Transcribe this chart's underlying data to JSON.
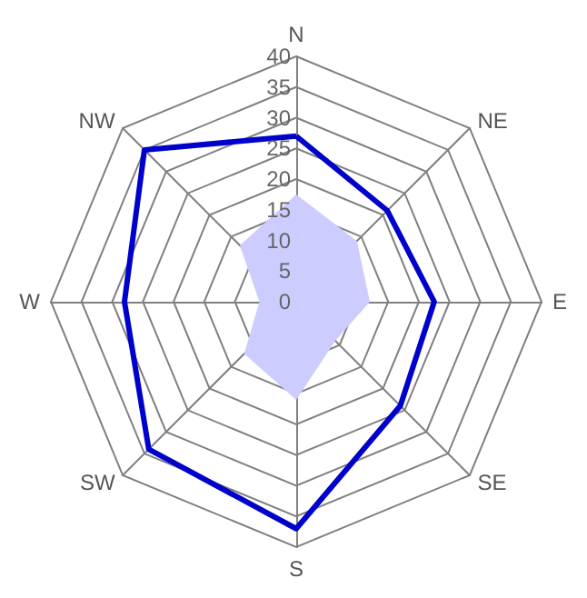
{
  "chart_data": {
    "type": "radar",
    "categories": [
      "N",
      "NE",
      "E",
      "SE",
      "S",
      "SW",
      "W",
      "NW"
    ],
    "ylim": [
      0,
      40
    ],
    "yticks": [
      0,
      5,
      10,
      15,
      20,
      25,
      30,
      35,
      40
    ],
    "marker": "none",
    "series": [
      {
        "color": "#0000cc",
        "values": [
          27,
          21,
          22.5,
          24,
          37,
          34,
          28,
          35
        ]
      },
      {
        "type": "area",
        "color": "#ccccff",
        "values": [
          17.5,
          14,
          12,
          9,
          16,
          12,
          6,
          13
        ]
      }
    ]
  }
}
